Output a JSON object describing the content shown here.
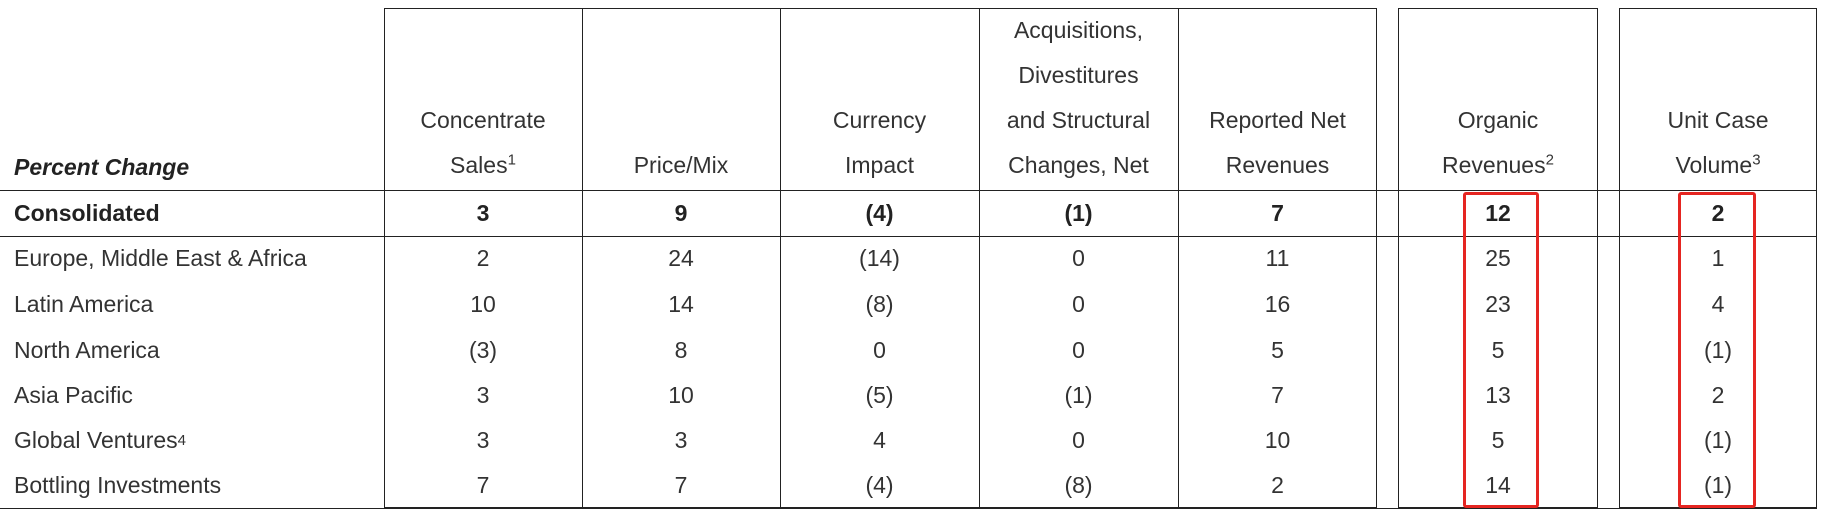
{
  "table": {
    "corner": "Percent Change",
    "headers": [
      {
        "lines": [
          "Concentrate",
          "Sales"
        ],
        "note": "1"
      },
      {
        "lines": [
          "Price/Mix"
        ]
      },
      {
        "lines": [
          "Currency",
          "Impact"
        ]
      },
      {
        "lines": [
          "Acquisitions,",
          "Divestitures",
          "and Structural",
          "Changes, Net"
        ]
      },
      {
        "lines": [
          "Reported Net",
          "Revenues"
        ]
      },
      {
        "lines": [
          "Organic",
          "Revenues"
        ],
        "note": "2"
      },
      {
        "lines": [
          "Unit Case",
          "Volume"
        ],
        "note": "3"
      }
    ],
    "rows": [
      {
        "label": "Consolidated",
        "cells": [
          "3",
          "9",
          "(4)",
          "(1)",
          "7",
          "12",
          "2"
        ]
      },
      {
        "label": "Europe, Middle East & Africa",
        "cells": [
          "2",
          "24",
          "(14)",
          "0",
          "11",
          "25",
          "1"
        ]
      },
      {
        "label": "Latin America",
        "cells": [
          "10",
          "14",
          "(8)",
          "0",
          "16",
          "23",
          "4"
        ]
      },
      {
        "label": "North America",
        "cells": [
          "(3)",
          "8",
          "0",
          "0",
          "5",
          "5",
          "(1)"
        ]
      },
      {
        "label": "Asia Pacific",
        "cells": [
          "3",
          "10",
          "(5)",
          "(1)",
          "7",
          "13",
          "2"
        ]
      },
      {
        "label": "Global Ventures",
        "note": "4",
        "cells": [
          "3",
          "3",
          "4",
          "0",
          "10",
          "5",
          "(1)"
        ]
      },
      {
        "label": "Bottling Investments",
        "cells": [
          "7",
          "7",
          "(4)",
          "(8)",
          "2",
          "14",
          "(1)"
        ]
      }
    ]
  }
}
